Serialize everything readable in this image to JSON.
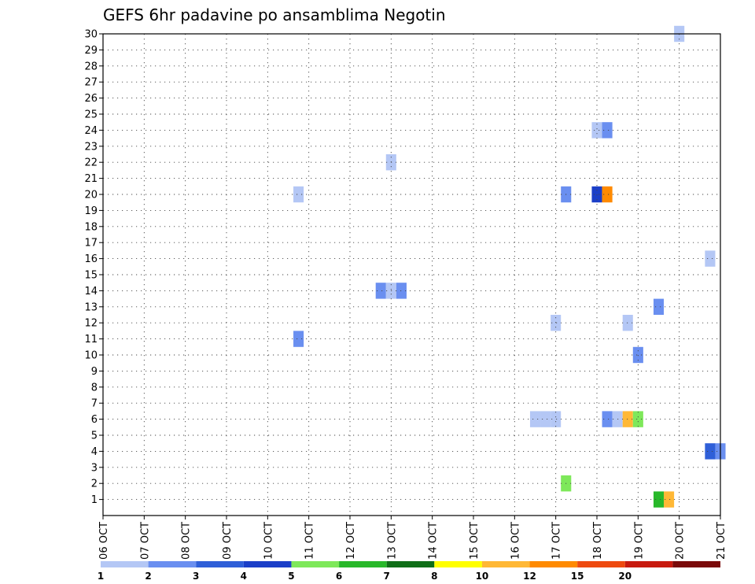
{
  "chart_data": {
    "type": "heatmap",
    "title": "GEFS 6hr padavine po ansamblima Negotin",
    "xlabel": "",
    "ylabel": "",
    "x_tick_labels": [
      "06 OCT",
      "07 OCT",
      "08 OCT",
      "09 OCT",
      "10 OCT",
      "11 OCT",
      "12 OCT",
      "13 OCT",
      "14 OCT",
      "15 OCT",
      "16 OCT",
      "17 OCT",
      "18 OCT",
      "19 OCT",
      "20 OCT",
      "21 OCT"
    ],
    "y_tick_labels": [
      "1",
      "2",
      "3",
      "4",
      "5",
      "6",
      "7",
      "8",
      "9",
      "10",
      "11",
      "12",
      "13",
      "14",
      "15",
      "16",
      "17",
      "18",
      "19",
      "20",
      "21",
      "22",
      "23",
      "24",
      "25",
      "26",
      "27",
      "28",
      "29",
      "30"
    ],
    "xlim_days": [
      0,
      15
    ],
    "ylim": [
      0,
      30
    ],
    "grid": true,
    "legend_placement": "bottom",
    "color_scale": {
      "bins": [
        "#b4c7f5",
        "#6a8ff0",
        "#2f5fd8",
        "#1b3fc8",
        "#7ee85a",
        "#28b82a",
        "#0f6e17",
        "#ffff00",
        "#ffb836",
        "#ff8a00",
        "#ee4a0f",
        "#c81a0f",
        "#7a0a0a"
      ],
      "labels": [
        "1",
        "2",
        "3",
        "4",
        "5",
        "6",
        "7",
        "8",
        "10",
        "12",
        "15",
        "20"
      ]
    },
    "cells": [
      {
        "day": 14.0,
        "member": 30,
        "cat": 0
      },
      {
        "day": 12.0,
        "member": 24,
        "cat": 0
      },
      {
        "day": 12.25,
        "member": 24,
        "cat": 1
      },
      {
        "day": 7.0,
        "member": 22,
        "cat": 0
      },
      {
        "day": 4.75,
        "member": 20,
        "cat": 0
      },
      {
        "day": 11.25,
        "member": 20,
        "cat": 1
      },
      {
        "day": 12.0,
        "member": 20,
        "cat": 3
      },
      {
        "day": 12.25,
        "member": 20,
        "cat": 9
      },
      {
        "day": 14.75,
        "member": 16,
        "cat": 0
      },
      {
        "day": 6.75,
        "member": 14,
        "cat": 1
      },
      {
        "day": 7.0,
        "member": 14,
        "cat": 0
      },
      {
        "day": 7.25,
        "member": 14,
        "cat": 1
      },
      {
        "day": 13.5,
        "member": 13,
        "cat": 1
      },
      {
        "day": 11.0,
        "member": 12,
        "cat": 0
      },
      {
        "day": 12.75,
        "member": 12,
        "cat": 0
      },
      {
        "day": 4.75,
        "member": 11,
        "cat": 1
      },
      {
        "day": 13.0,
        "member": 10,
        "cat": 1
      },
      {
        "day": 10.5,
        "member": 6,
        "cat": 0
      },
      {
        "day": 10.75,
        "member": 6,
        "cat": 0
      },
      {
        "day": 11.0,
        "member": 6,
        "cat": 0
      },
      {
        "day": 12.25,
        "member": 6,
        "cat": 1
      },
      {
        "day": 12.5,
        "member": 6,
        "cat": 0
      },
      {
        "day": 12.75,
        "member": 6,
        "cat": 8
      },
      {
        "day": 13.0,
        "member": 6,
        "cat": 4
      },
      {
        "day": 14.75,
        "member": 4,
        "cat": 2
      },
      {
        "day": 15.0,
        "member": 4,
        "cat": 1
      },
      {
        "day": 11.25,
        "member": 2,
        "cat": 4
      },
      {
        "day": 13.5,
        "member": 1,
        "cat": 5
      },
      {
        "day": 13.75,
        "member": 1,
        "cat": 8
      }
    ]
  }
}
